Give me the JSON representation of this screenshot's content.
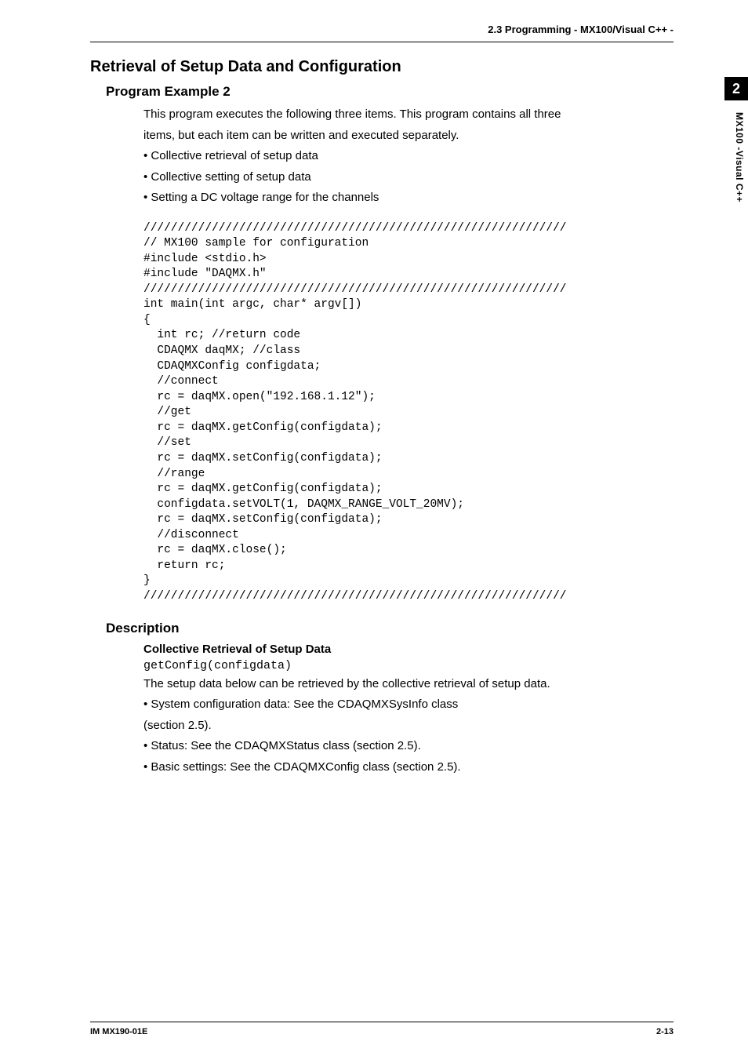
{
  "header": {
    "section_label": "2.3  Programming - MX100/Visual C++ -"
  },
  "side_tab": {
    "number": "2",
    "label": "MX100 -Visual C++"
  },
  "section": {
    "title": "Retrieval of Setup Data and Configuration",
    "subsection_title": "Program Example 2",
    "intro_line1": "This program executes the following three items. This program contains all three",
    "intro_line2": "items, but each item can be written and executed separately.",
    "bullets": [
      "•  Collective retrieval of setup data",
      "•  Collective setting of setup data",
      "•  Setting a DC voltage range for the channels"
    ]
  },
  "code": {
    "block": "//////////////////////////////////////////////////////////////\n// MX100 sample for configuration\n#include <stdio.h>\n#include \"DAQMX.h\"\n//////////////////////////////////////////////////////////////\nint main(int argc, char* argv[])\n{\n  int rc; //return code\n  CDAQMX daqMX; //class\n  CDAQMXConfig configdata;\n  //connect\n  rc = daqMX.open(\"192.168.1.12\");\n  //get\n  rc = daqMX.getConfig(configdata);\n  //set\n  rc = daqMX.setConfig(configdata);\n  //range\n  rc = daqMX.getConfig(configdata);\n  configdata.setVOLT(1, DAQMX_RANGE_VOLT_20MV);\n  rc = daqMX.setConfig(configdata);\n  //disconnect\n  rc = daqMX.close();\n  return rc;\n}\n//////////////////////////////////////////////////////////////"
  },
  "description": {
    "title": "Description",
    "sub_title": "Collective Retrieval of Setup Data",
    "code_line": "getConfig(configdata)",
    "body_line": "The setup data below can be retrieved by the collective retrieval of setup data.",
    "bullets": [
      "•  System configuration data: See the CDAQMXSysInfo class",
      "   (section 2.5).",
      "•  Status: See the CDAQMXStatus class (section 2.5).",
      "•  Basic settings: See the CDAQMXConfig class (section 2.5)."
    ]
  },
  "footer": {
    "left": "IM MX190-01E",
    "right": "2-13"
  }
}
